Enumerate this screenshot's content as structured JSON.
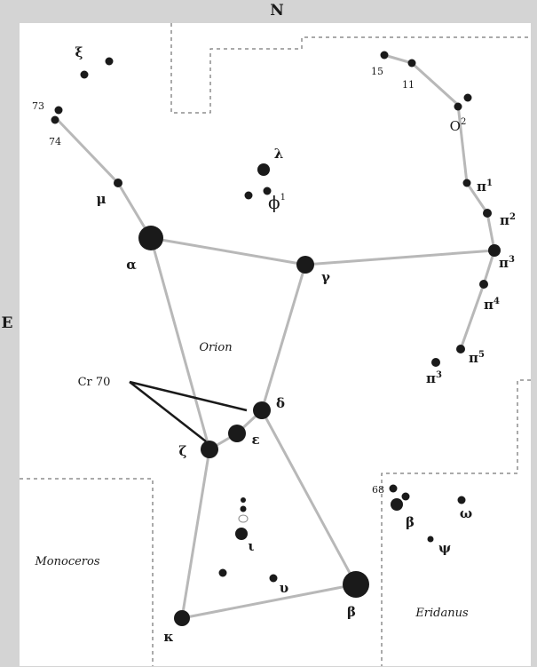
{
  "compass": {
    "north": "N",
    "east": "E"
  },
  "regions": {
    "orion": "Orion",
    "monoceros": "Monoceros",
    "eridanus": "Eridanus"
  },
  "cluster_label": "Cr 70",
  "stars": {
    "xi": "ξ",
    "num73": "73",
    "num74": "74",
    "mu": "μ",
    "alpha": "α",
    "lambda": "λ",
    "phi": "ϕ",
    "phi_sup": "1",
    "gamma": "γ",
    "num15": "15",
    "num11": "11",
    "omicron": "O",
    "omicron_sup": "2",
    "pi": "π",
    "pi1_sup": "1",
    "pi2_sup": "2",
    "pi3_sup": "3",
    "pi4_sup": "4",
    "pi5_sup": "5",
    "pi3b_sup": "3",
    "delta": "δ",
    "epsilon": "ε",
    "zeta": "ζ",
    "iota": "ι",
    "upsilon": "υ",
    "beta": "β",
    "kappa": "κ",
    "num68": "68",
    "beta_eri": "β",
    "omega": "ω",
    "psi": "ψ"
  },
  "colors": {
    "frame": "#d4d4d4",
    "sky": "#ffffff",
    "star": "#1a1a1a",
    "line": "#b8b8b8",
    "cluster_line": "#1a1a1a"
  }
}
